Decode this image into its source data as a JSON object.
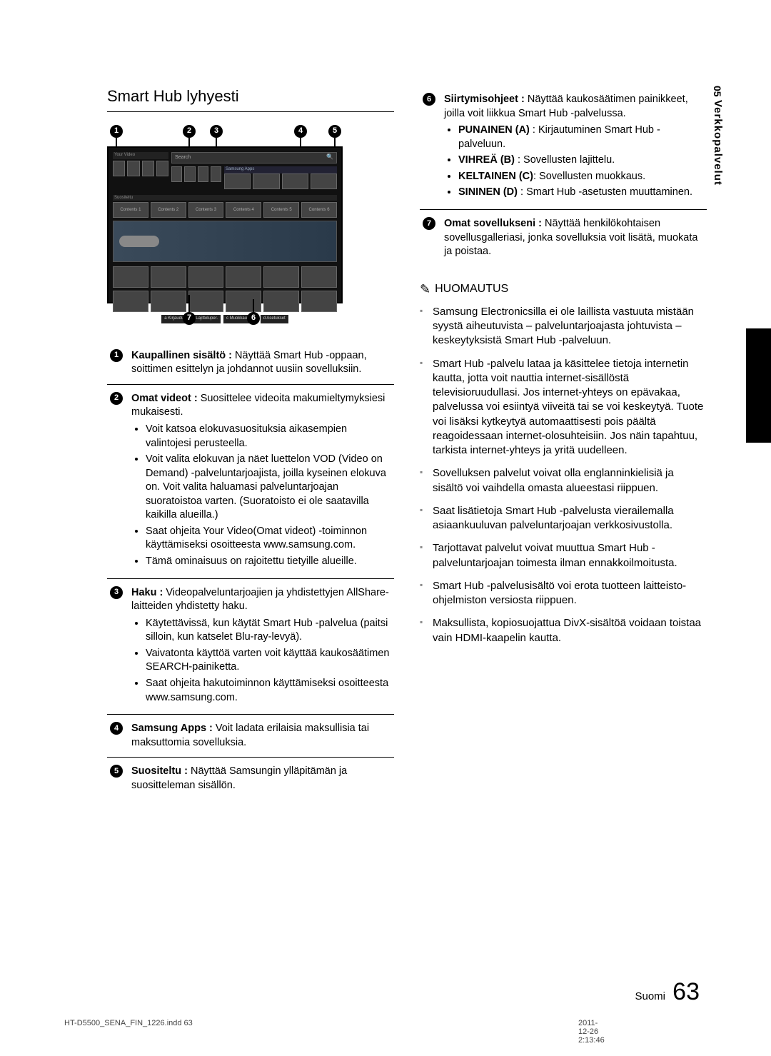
{
  "sideTab": {
    "num": "05",
    "label": "Verkkopalvelut"
  },
  "sectionTitle": "Smart Hub lyhyesti",
  "screenshot": {
    "calloutsTop": [
      1,
      2,
      3,
      4,
      5
    ],
    "calloutsBottom": [
      7,
      6
    ],
    "searchLabel": "Search",
    "appsLabel": "Samsung Apps",
    "rowCells": [
      "Contents 1",
      "Contents 2",
      "Contents 3",
      "Contents 4",
      "Contents 5",
      "Contents 6"
    ],
    "footerButtons": [
      "a Kirjaudu",
      "b Lajitteluper.",
      "c Muokkaustila",
      "d Asetukset"
    ]
  },
  "legendLeft": [
    {
      "n": 1,
      "lead": "Kaupallinen sisältö : ",
      "text": "Näyttää Smart Hub -oppaan, soittimen esittelyn ja johdannot uusiin sovelluksiin.",
      "bullets": []
    },
    {
      "n": 2,
      "lead": "Omat videot : ",
      "text": "Suosittelee videoita makumieltymyksiesi mukaisesti.",
      "bullets": [
        "Voit katsoa elokuvasuosituksia aikasempien valintojesi perusteella.",
        "Voit valita elokuvan ja näet luettelon VOD (Video on Demand) -palveluntarjoajista, joilla kyseinen elokuva on. Voit valita haluamasi palveluntarjoajan suoratoistoa varten. (Suoratoisto ei ole saatavilla kaikilla alueilla.)",
        "Saat ohjeita Your Video(Omat videot) -toiminnon käyttämiseksi osoitteesta www.samsung.com.",
        "Tämä ominaisuus on rajoitettu tietyille alueille."
      ]
    },
    {
      "n": 3,
      "lead": "Haku : ",
      "text": "Videopalveluntarjoajien ja yhdistettyjen AllShare-laitteiden yhdistetty haku.",
      "bullets": [
        "Käytettävissä, kun käytät Smart Hub -palvelua (paitsi silloin, kun katselet Blu-ray-levyä).",
        "Vaivatonta käyttöä varten voit käyttää kaukosäätimen SEARCH-painiketta.",
        "Saat ohjeita hakutoiminnon käyttämiseksi osoitteesta www.samsung.com."
      ]
    },
    {
      "n": 4,
      "lead": "Samsung Apps : ",
      "text": "Voit ladata erilaisia maksullisia tai maksuttomia sovelluksia.",
      "bullets": []
    },
    {
      "n": 5,
      "lead": "Suositeltu : ",
      "text": "Näyttää Samsungin ylläpitämän ja suositteleman sisällön.",
      "bullets": []
    }
  ],
  "legendRight": [
    {
      "n": 6,
      "lead": "Siirtymisohjeet : ",
      "text": "Näyttää kaukosäätimen painikkeet, joilla voit liikkua Smart Hub -palvelussa.",
      "bulletsBold": [
        {
          "b": "PUNAINEN (A)",
          "t": " : Kirjautuminen Smart Hub -palveluun."
        },
        {
          "b": "VIHREÄ (B)",
          "t": " : Sovellusten lajittelu."
        },
        {
          "b": "KELTAINEN (C)",
          "t": ": Sovellusten muokkaus."
        },
        {
          "b": "SININEN (D)",
          "t": " : Smart Hub -asetusten muuttaminen."
        }
      ]
    },
    {
      "n": 7,
      "lead": "Omat sovellukseni : ",
      "text": "Näyttää henkilökohtaisen sovellusgalleriasi, jonka sovelluksia voit lisätä, muokata ja poistaa.",
      "bulletsBold": []
    }
  ],
  "noteHeading": "HUOMAUTUS",
  "notes": [
    "Samsung Electronicsilla ei ole laillista vastuuta mistään syystä aiheutuvista – palveluntarjoajasta johtuvista – keskeytyksistä Smart Hub -palveluun.",
    "Smart Hub -palvelu lataa ja käsittelee tietoja internetin kautta, jotta voit nauttia internet-sisällöstä televisioruudullasi.\nJos internet-yhteys on epävakaa, palvelussa voi esiintyä viiveitä tai se voi keskeytyä.\nTuote voi lisäksi kytkeytyä automaattisesti pois päältä reagoidessaan internet-olosuhteisiin. Jos näin tapahtuu, tarkista internet-yhteys ja yritä uudelleen.",
    "Sovelluksen palvelut voivat olla englanninkielisiä ja sisältö voi vaihdella omasta alueestasi riippuen.",
    "Saat lisätietoja Smart Hub -palvelusta vierailemalla asiaankuuluvan palveluntarjoajan verkkosivustolla.",
    "Tarjottavat palvelut voivat muuttua Smart Hub -palveluntarjoajan toimesta ilman ennakkoilmoitusta.",
    "Smart Hub -palvelusisältö voi erota tuotteen laitteisto-ohjelmiston versiosta riippuen.",
    "Maksullista, kopiosuojattua DivX-sisältöä voidaan toistaa vain HDMI-kaapelin kautta."
  ],
  "pageLang": "Suomi",
  "pageNumber": "63",
  "footerLeft": "HT-D5500_SENA_FIN_1226.indd   63",
  "footerRight": "2011-12-26   2:13:46"
}
